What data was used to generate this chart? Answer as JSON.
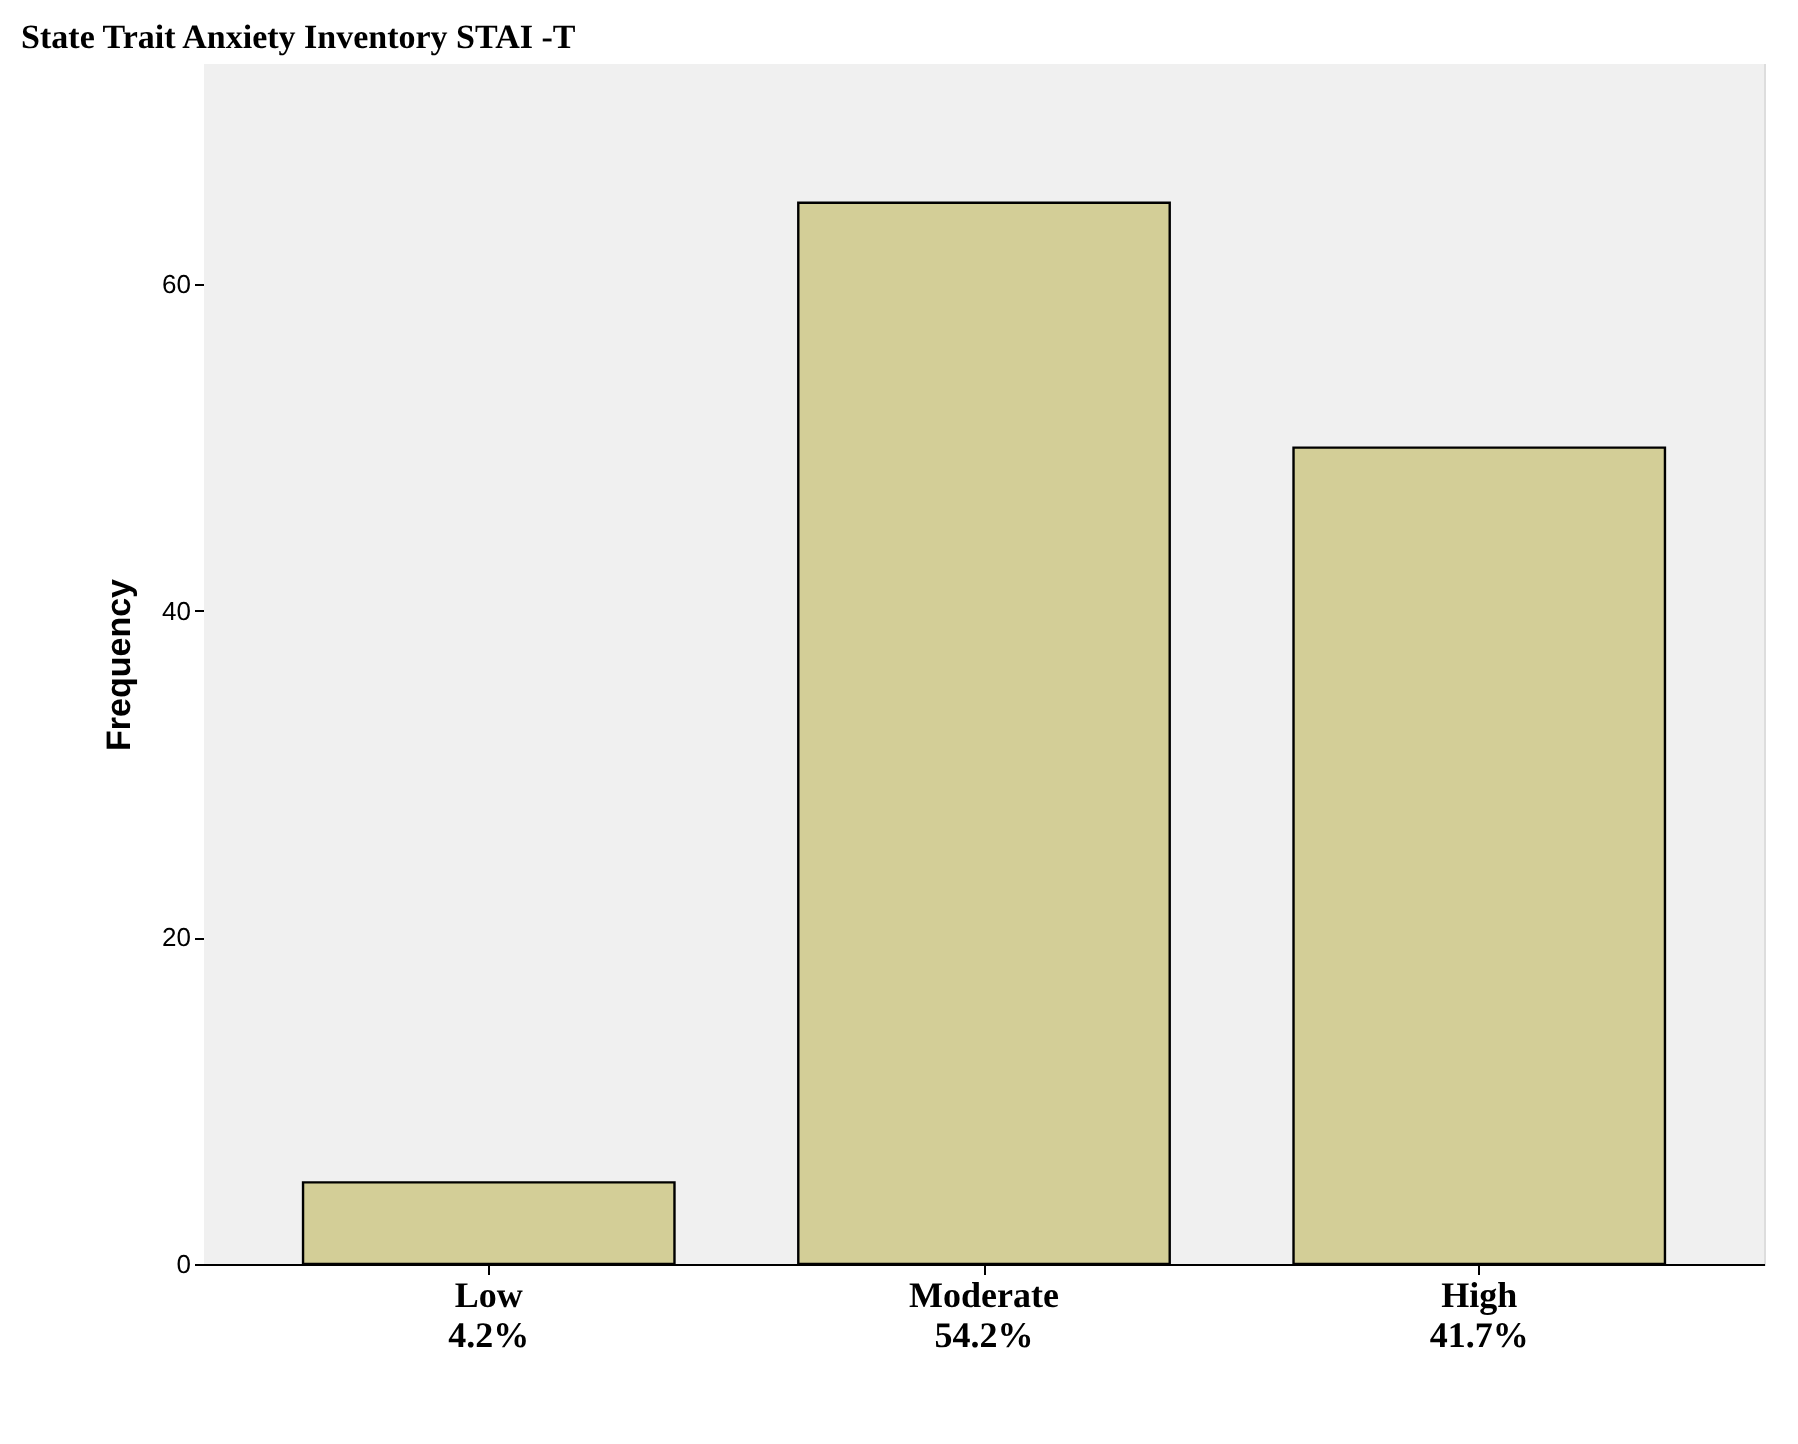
{
  "chart_data": {
    "type": "bar",
    "title": "State Trait Anxiety Inventory STAI -T",
    "ylabel": "Frequency",
    "categories": [
      "Low\n4.2%",
      "Moderate\n54.2%",
      "High\n41.7%"
    ],
    "values": [
      5,
      65,
      50
    ],
    "color": "#d3ce97",
    "ylim": [
      0,
      73.5
    ],
    "yticks": [
      0,
      20,
      40,
      60
    ]
  }
}
